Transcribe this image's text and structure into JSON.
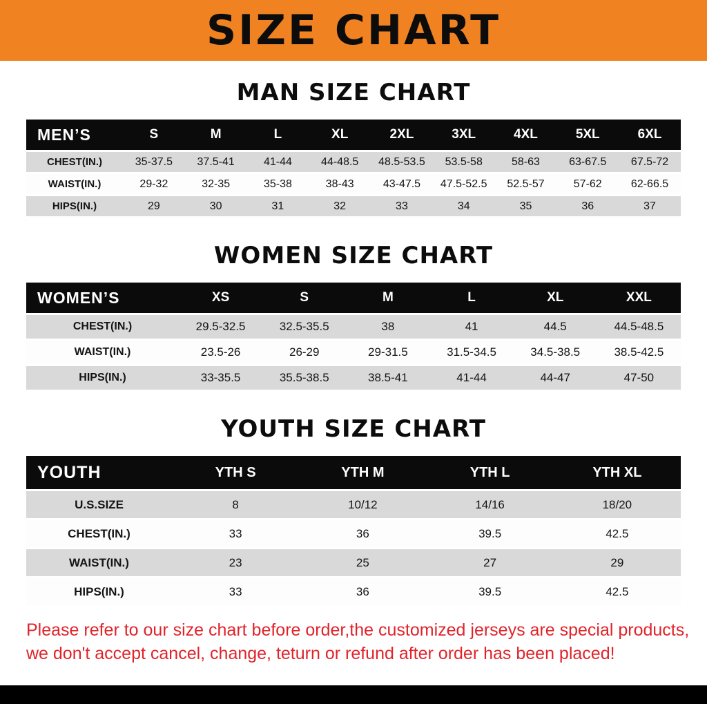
{
  "banner": {
    "title": "SIZE CHART"
  },
  "colors": {
    "banner_bg": "#f08221",
    "banner_text": "#0c0c0c",
    "table_header_bg": "#0b0b0b",
    "table_header_text": "#ffffff",
    "row_alt_bg": "#d9d9d9",
    "row_bg": "#fdfdfd",
    "disclaimer_text": "#e1232a",
    "footer_bg": "#000000"
  },
  "sections": [
    {
      "heading": "MAN SIZE CHART",
      "header_label": "MEN’S",
      "columns": [
        "S",
        "M",
        "L",
        "XL",
        "2XL",
        "3XL",
        "4XL",
        "5XL",
        "6XL"
      ],
      "rows": [
        {
          "label": "CHEST(IN.)",
          "values": [
            "35-37.5",
            "37.5-41",
            "41-44",
            "44-48.5",
            "48.5-53.5",
            "53.5-58",
            "58-63",
            "63-67.5",
            "67.5-72"
          ]
        },
        {
          "label": "WAIST(IN.)",
          "values": [
            "29-32",
            "32-35",
            "35-38",
            "38-43",
            "43-47.5",
            "47.5-52.5",
            "52.5-57",
            "57-62",
            "62-66.5"
          ]
        },
        {
          "label": "HIPS(IN.)",
          "values": [
            "29",
            "30",
            "31",
            "32",
            "33",
            "34",
            "35",
            "36",
            "37"
          ]
        }
      ]
    },
    {
      "heading": "WOMEN SIZE CHART",
      "header_label": "WOMEN’S",
      "columns": [
        "XS",
        "S",
        "M",
        "L",
        "XL",
        "XXL"
      ],
      "rows": [
        {
          "label": "CHEST(IN.)",
          "values": [
            "29.5-32.5",
            "32.5-35.5",
            "38",
            "41",
            "44.5",
            "44.5-48.5"
          ]
        },
        {
          "label": "WAIST(IN.)",
          "values": [
            "23.5-26",
            "26-29",
            "29-31.5",
            "31.5-34.5",
            "34.5-38.5",
            "38.5-42.5"
          ]
        },
        {
          "label": "HIPS(IN.)",
          "values": [
            "33-35.5",
            "35.5-38.5",
            "38.5-41",
            "41-44",
            "44-47",
            "47-50"
          ]
        }
      ]
    },
    {
      "heading": "YOUTH SIZE CHART",
      "header_label": "YOUTH",
      "columns": [
        "YTH S",
        "YTH M",
        "YTH L",
        "YTH XL"
      ],
      "rows": [
        {
          "label": "U.S.SIZE",
          "values": [
            "8",
            "10/12",
            "14/16",
            "18/20"
          ]
        },
        {
          "label": "CHEST(IN.)",
          "values": [
            "33",
            "36",
            "39.5",
            "42.5"
          ]
        },
        {
          "label": "WAIST(IN.)",
          "values": [
            "23",
            "25",
            "27",
            "29"
          ]
        },
        {
          "label": "HIPS(IN.)",
          "values": [
            "33",
            "36",
            "39.5",
            "42.5"
          ]
        }
      ]
    }
  ],
  "disclaimer": {
    "lines": [
      "Please refer to our size chart before order,the customized jerseys are special products,",
      "we don't accept cancel, change, teturn or refund after order has been placed!"
    ]
  }
}
